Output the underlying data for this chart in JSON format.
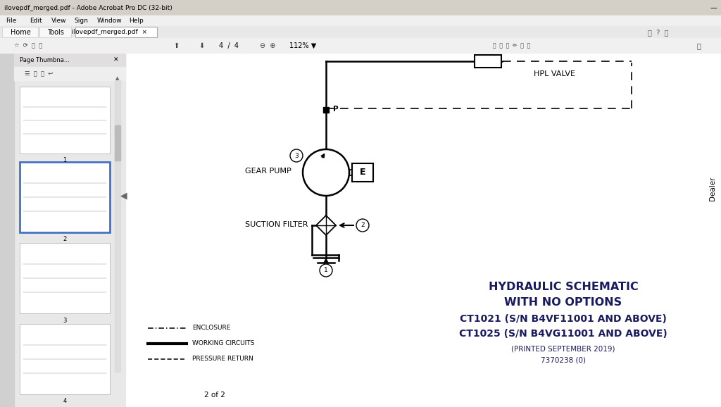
{
  "bg_color": "#c8c8c8",
  "sidebar_bg": "#e8e8e8",
  "doc_bg": "#ffffff",
  "title_bar_color": "#d4d0c8",
  "menu_bar_color": "#f0f0f0",
  "tab_bar_color": "#e8e8e8",
  "toolbar_color": "#f0f0f0",
  "icon_strip_color": "#d0d0d0",
  "thumb_header_color": "#e0dede",
  "window_title": "ilovepdf_merged.pdf - Adobe Acrobat Pro DC (32-bit)",
  "menu_items": [
    "File",
    "Edit",
    "View",
    "Sign",
    "Window",
    "Help"
  ],
  "tab_title": "ilovepdf_merged.pdf",
  "page_nav": "4  /  4",
  "zoom_level": "112%",
  "page_label": "2 of 2",
  "dealer_text": "Dealer",
  "hpl_valve_text": "HPL VALVE",
  "gear_pump_text": "GEAR PUMP",
  "suction_filter_text": "SUCTION FILTER",
  "e_label": "E",
  "p_label": "P",
  "node1_label": "1",
  "node2_label": "2",
  "node3_label": "3",
  "title_lines": [
    "HYDRAULIC SCHEMATIC",
    "WITH NO OPTIONS",
    "CT1021 (S/N B4VF11001 AND ABOVE)",
    "CT1025 (S/N B4VG11001 AND ABOVE)"
  ],
  "subtitle_lines": [
    "(PRINTED SEPTEMBER 2019)",
    "7370238 (0)"
  ],
  "legend_enc_label": "ENCLOSURE",
  "legend_wc_label": "WORKING CIRCUITS",
  "legend_pr_label": "PRESSURE RETURN",
  "title_color": "#1a1a5e",
  "black": "#000000",
  "white": "#ffffff",
  "thumb_border_active": "#4472c4",
  "thumb_border": "#aaaaaa"
}
